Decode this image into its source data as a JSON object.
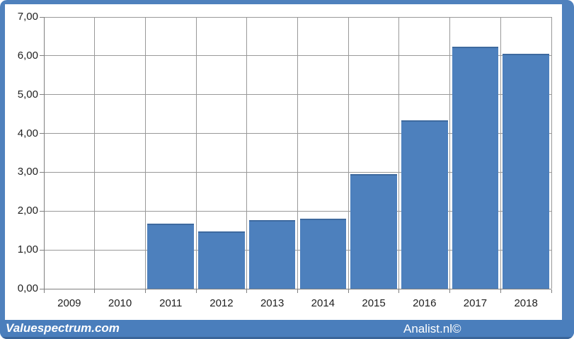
{
  "colors": {
    "frame": "#4f81bd",
    "bar": "#4d80bd",
    "gridline": "#999999",
    "axis": "#7f7f7f",
    "label": "#1f1f1f",
    "footer_bg": "#4a7ebc",
    "footer_stripe": "#3a659a",
    "footer_text": "#ffffff"
  },
  "footer": {
    "left_text": "Valuespectrum.com",
    "right_text": "Analist.nl©"
  },
  "chart_data": {
    "type": "bar",
    "categories": [
      "2009",
      "2010",
      "2011",
      "2012",
      "2013",
      "2014",
      "2015",
      "2016",
      "2017",
      "2018"
    ],
    "values": [
      0,
      0,
      1.68,
      1.48,
      1.77,
      1.81,
      2.96,
      4.33,
      6.24,
      6.05
    ],
    "title": "",
    "xlabel": "",
    "ylabel": "",
    "ylim": [
      0,
      7
    ],
    "ytick_step": 1,
    "ytick_labels": [
      "0,00",
      "1,00",
      "2,00",
      "3,00",
      "4,00",
      "5,00",
      "6,00",
      "7,00"
    ],
    "grid": true,
    "legend": false,
    "decimal_separator": ","
  }
}
